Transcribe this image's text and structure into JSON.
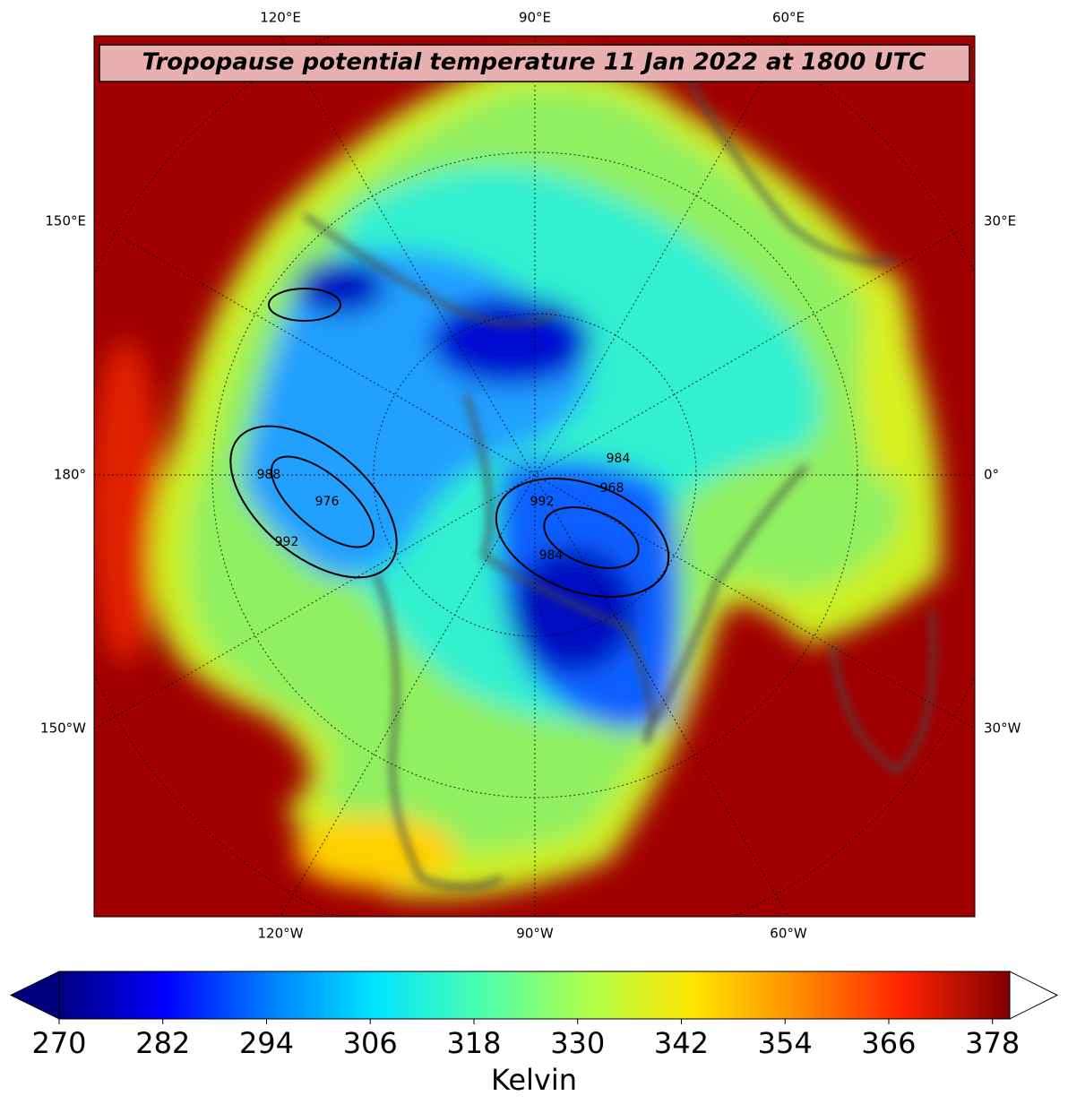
{
  "map": {
    "title": "Tropopause potential temperature 11 Jan 2022 at 1800 UTC",
    "lon_labels_top": [
      "120°E",
      "90°E",
      "60°E"
    ],
    "lon_labels_bottom": [
      "120°W",
      "90°W",
      "60°W"
    ],
    "lon_labels_left": [
      "150°E",
      "180°",
      "150°W"
    ],
    "lon_labels_right": [
      "30°E",
      "0°",
      "30°W"
    ],
    "contour_labels": [
      "988",
      "992",
      "976",
      "984",
      "968",
      "992",
      "984"
    ]
  },
  "colorbar": {
    "label": "Kelvin",
    "clim": [
      270,
      380
    ],
    "ticks": [
      270,
      282,
      294,
      306,
      318,
      330,
      342,
      354,
      366,
      378
    ],
    "colors": [
      "#00007f",
      "#0000ff",
      "#007fff",
      "#00e5ff",
      "#4cffad",
      "#adff4c",
      "#ffe500",
      "#ff8c00",
      "#ff2200",
      "#7f0000"
    ],
    "under_color": "#00007f",
    "over_color": "#ffffff"
  }
}
